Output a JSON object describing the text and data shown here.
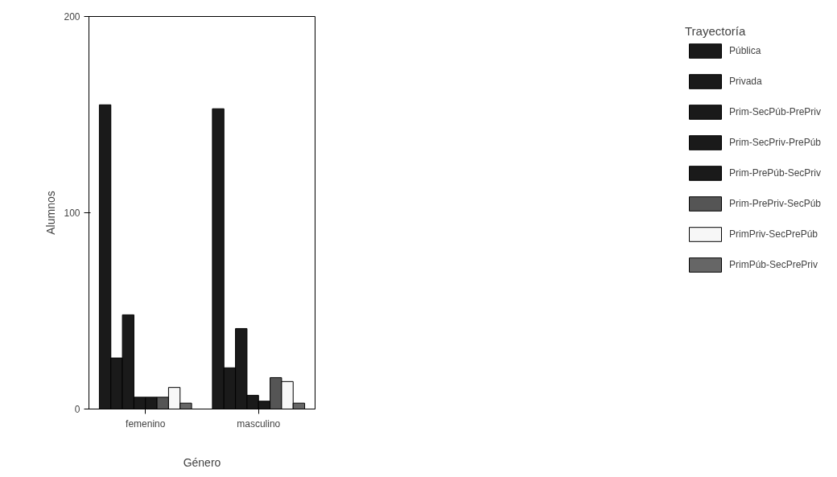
{
  "chart_data": {
    "type": "bar",
    "xlabel": "Género",
    "ylabel": "Alumnos",
    "legend_title": "Trayectoría",
    "categories": [
      "femenino",
      "masculino"
    ],
    "ylim": [
      0,
      200
    ],
    "yticks": [
      0,
      100,
      200
    ],
    "grid": false,
    "legend": "right",
    "series": [
      {
        "name": "Pública",
        "color": "#1a1a1a",
        "values": [
          155,
          153
        ]
      },
      {
        "name": "Privada",
        "color": "#1a1a1a",
        "values": [
          26,
          21
        ]
      },
      {
        "name": "Prim-SecPúb-PrePriv",
        "color": "#1a1a1a",
        "values": [
          48,
          41
        ]
      },
      {
        "name": "Prim-SecPriv-PrePúb",
        "color": "#1a1a1a",
        "values": [
          6,
          7
        ]
      },
      {
        "name": "Prim-PrePúb-SecPriv",
        "color": "#1a1a1a",
        "values": [
          6,
          4
        ]
      },
      {
        "name": "Prim-PrePriv-SecPúb",
        "color": "#555555",
        "values": [
          6,
          16
        ]
      },
      {
        "name": "PrimPriv-SecPrePúb",
        "color": "#f7f7f7",
        "values": [
          11,
          14
        ]
      },
      {
        "name": "PrimPúb-SecPrePriv",
        "color": "#666666",
        "values": [
          3,
          3
        ]
      }
    ]
  }
}
